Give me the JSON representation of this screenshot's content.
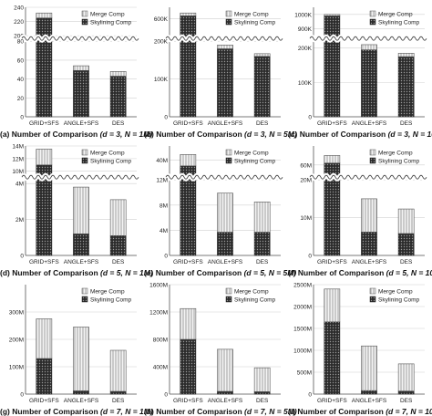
{
  "colors": {
    "skyline_fill": "#3a3a3a",
    "merge_fill": "#d9d9d9",
    "grid": "#d0d0d0",
    "axis": "#555555"
  },
  "legend_labels": [
    "Merge Comp",
    "Skylining Comp"
  ],
  "chart_data": [
    {
      "type": "bar",
      "stacked": true,
      "panel": "(a)",
      "caption": "Number of Comparison",
      "param": "(d = 3, N = 1M)",
      "categories": [
        "GRID+SFS",
        "ANGLE+SFS",
        "DES"
      ],
      "series": [
        {
          "name": "Skylining Comp",
          "values": [
            225,
            49,
            43
          ]
        },
        {
          "name": "Merge Comp",
          "values": [
            7,
            5,
            5
          ]
        }
      ],
      "ylim": [
        0,
        240
      ],
      "y_ticks": [
        "0",
        "20",
        "40",
        "60",
        "80",
        "200",
        "220",
        "240"
      ],
      "axis_break": {
        "lower": [
          0,
          80
        ],
        "upper": [
          200,
          240
        ]
      }
    },
    {
      "type": "bar",
      "stacked": true,
      "panel": "(b)",
      "caption": "Number of Comparison",
      "param": "(d = 3, N = 5M)",
      "categories": [
        "GRID+SFS",
        "ANGLE+SFS",
        "DES"
      ],
      "series": [
        {
          "name": "Skylining Comp",
          "values": [
            610,
            180,
            160
          ]
        },
        {
          "name": "Merge Comp",
          "values": [
            10,
            10,
            7
          ]
        }
      ],
      "ylim": [
        0,
        640
      ],
      "y_ticks": [
        "0",
        "100K",
        "200K",
        "600K"
      ],
      "axis_break": {
        "lower": [
          0,
          200
        ],
        "upper": [
          540,
          640
        ]
      }
    },
    {
      "type": "bar",
      "stacked": true,
      "panel": "(c)",
      "caption": "Number of Comparison",
      "param": "(d = 3, N = 10M)",
      "categories": [
        "GRID+SFS",
        "ANGLE+SFS",
        "DES"
      ],
      "series": [
        {
          "name": "Skylining Comp",
          "values": [
            990,
            195,
            175
          ]
        },
        {
          "name": "Merge Comp",
          "values": [
            10,
            15,
            10
          ]
        }
      ],
      "ylim": [
        0,
        1050
      ],
      "y_ticks": [
        "0",
        "100K",
        "200K",
        "900K",
        "1000K"
      ],
      "axis_break": {
        "lower": [
          0,
          220
        ],
        "upper": [
          850,
          1050
        ]
      }
    },
    {
      "type": "bar",
      "stacked": true,
      "panel": "(d)",
      "caption": "Number of Comparison",
      "param": "(d = 5, N = 1M)",
      "categories": [
        "GRID+SFS",
        "ANGLE+SFS",
        "DES"
      ],
      "series": [
        {
          "name": "Skylining Comp",
          "values": [
            11,
            1.2,
            1.1
          ]
        },
        {
          "name": "Merge Comp",
          "values": [
            2.5,
            2.6,
            2.0
          ]
        }
      ],
      "ylim": [
        0,
        14
      ],
      "y_ticks": [
        "0",
        "2M",
        "4M",
        "10M",
        "12M",
        "14M"
      ],
      "axis_break": {
        "lower": [
          0,
          4.2
        ],
        "upper": [
          9.5,
          14
        ]
      }
    },
    {
      "type": "bar",
      "stacked": true,
      "panel": "(e)",
      "caption": "Number of Comparison",
      "param": "(d = 5, N = 5M)",
      "categories": [
        "GRID+SFS",
        "ANGLE+SFS",
        "DES"
      ],
      "series": [
        {
          "name": "Skylining Comp",
          "values": [
            38,
            3.7,
            3.7
          ]
        },
        {
          "name": "Merge Comp",
          "values": [
            4,
            6.2,
            4.8
          ]
        }
      ],
      "ylim": [
        0,
        45
      ],
      "y_ticks": [
        "0",
        "4M",
        "8M",
        "12M",
        "40M"
      ],
      "axis_break": {
        "lower": [
          0,
          12
        ],
        "upper": [
          35,
          45
        ]
      }
    },
    {
      "type": "bar",
      "stacked": true,
      "panel": "(f)",
      "caption": "Number of Comparison",
      "param": "(d = 5, N = 10M)",
      "categories": [
        "GRID+SFS",
        "ANGLE+SFS",
        "DES"
      ],
      "series": [
        {
          "name": "Skylining Comp",
          "values": [
            61,
            6.2,
            5.8
          ]
        },
        {
          "name": "Merge Comp",
          "values": [
            4,
            8.8,
            6.5
          ]
        }
      ],
      "ylim": [
        0,
        70
      ],
      "y_ticks": [
        "0",
        "10M",
        "20M",
        "60M"
      ],
      "axis_break": {
        "lower": [
          0,
          20
        ],
        "upper": [
          55,
          70
        ]
      }
    },
    {
      "type": "bar",
      "stacked": true,
      "panel": "(g)",
      "caption": "Number of Comparison",
      "param": "(d = 7, N = 1M)",
      "categories": [
        "GRID+SFS",
        "ANGLE+SFS",
        "DES"
      ],
      "series": [
        {
          "name": "Skylining Comp",
          "values": [
            130,
            12,
            10
          ]
        },
        {
          "name": "Merge Comp",
          "values": [
            145,
            233,
            150
          ]
        }
      ],
      "ylim": [
        0,
        400
      ],
      "y_ticks": [
        "0",
        "100M",
        "200M",
        "300M"
      ]
    },
    {
      "type": "bar",
      "stacked": true,
      "panel": "(h)",
      "caption": "Number of Comparison",
      "param": "(d = 7, N = 5M)",
      "categories": [
        "GRID+SFS",
        "ANGLE+SFS",
        "DES"
      ],
      "series": [
        {
          "name": "Skylining Comp",
          "values": [
            800,
            40,
            35
          ]
        },
        {
          "name": "Merge Comp",
          "values": [
            450,
            615,
            350
          ]
        }
      ],
      "ylim": [
        0,
        1600
      ],
      "y_ticks": [
        "0",
        "400M",
        "800M",
        "1200M",
        "1600M"
      ]
    },
    {
      "type": "bar",
      "stacked": true,
      "panel": "(i)",
      "caption": "Number of Comparison",
      "param": "(d = 7, N = 10M)",
      "categories": [
        "GRID+SFS",
        "ANGLE+SFS",
        "DES"
      ],
      "series": [
        {
          "name": "Skylining Comp",
          "values": [
            1650,
            80,
            70
          ]
        },
        {
          "name": "Merge Comp",
          "values": [
            750,
            1020,
            620
          ]
        }
      ],
      "ylim": [
        0,
        2500
      ],
      "y_ticks": [
        "0",
        "500M",
        "1000M",
        "1500M",
        "2000M",
        "2500M"
      ]
    }
  ]
}
